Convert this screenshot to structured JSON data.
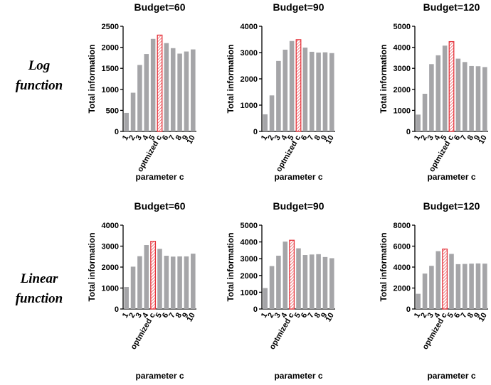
{
  "row_labels": [
    "Log function",
    "Linear function"
  ],
  "chart_data": [
    {
      "type": "bar",
      "title": "Budget=60",
      "ylabel": "Total information",
      "xlabel": "parameter c",
      "categories": [
        "1",
        "2",
        "3",
        "4",
        "5",
        "optmized c",
        "6",
        "7",
        "8",
        "9",
        "10"
      ],
      "values": [
        440,
        920,
        1580,
        1840,
        2200,
        2290,
        2100,
        1980,
        1850,
        1900,
        1950
      ],
      "color": "#a5a5a8",
      "colors": [
        "#a5a5a8",
        "#a5a5a8",
        "#a5a5a8",
        "#a5a5a8",
        "#a5a5a8",
        "#e5333b",
        "#a5a5a8",
        "#a5a5a8",
        "#a5a5a8",
        "#a5a5a8",
        "#a5a5a8"
      ],
      "ylim": [
        0,
        2500
      ],
      "yticks": [
        0,
        500,
        1000,
        1500,
        2000,
        2500
      ]
    },
    {
      "type": "bar",
      "title": "Budget=90",
      "ylabel": "Total information",
      "xlabel": "parameter c",
      "categories": [
        "1",
        "2",
        "3",
        "4",
        "5",
        "optmized c",
        "6",
        "7",
        "8",
        "9",
        "10"
      ],
      "values": [
        650,
        1370,
        2680,
        3110,
        3440,
        3490,
        3190,
        3030,
        3000,
        3010,
        2980
      ],
      "color": "#a5a5a8",
      "colors": [
        "#a5a5a8",
        "#a5a5a8",
        "#a5a5a8",
        "#a5a5a8",
        "#a5a5a8",
        "#e5333b",
        "#a5a5a8",
        "#a5a5a8",
        "#a5a5a8",
        "#a5a5a8",
        "#a5a5a8"
      ],
      "ylim": [
        0,
        4000
      ],
      "yticks": [
        0,
        1000,
        2000,
        3000,
        4000
      ]
    },
    {
      "type": "bar",
      "title": "Budget=120",
      "ylabel": "Total information",
      "xlabel": "parameter c",
      "categories": [
        "1",
        "2",
        "3",
        "4",
        "5",
        "optmized c",
        "6",
        "7",
        "8",
        "9",
        "10"
      ],
      "values": [
        800,
        1790,
        3200,
        3620,
        4080,
        4270,
        3460,
        3300,
        3110,
        3100,
        3060
      ],
      "color": "#a5a5a8",
      "colors": [
        "#a5a5a8",
        "#a5a5a8",
        "#a5a5a8",
        "#a5a5a8",
        "#a5a5a8",
        "#e5333b",
        "#a5a5a8",
        "#a5a5a8",
        "#a5a5a8",
        "#a5a5a8",
        "#a5a5a8"
      ],
      "ylim": [
        0,
        5000
      ],
      "yticks": [
        0,
        1000,
        2000,
        3000,
        4000,
        5000
      ]
    },
    {
      "type": "bar",
      "title": "Budget=60",
      "ylabel": "Total information",
      "xlabel": "parameter c",
      "categories": [
        "1",
        "2",
        "3",
        "4",
        "optmized c",
        "5",
        "6",
        "7",
        "8",
        "9",
        "10"
      ],
      "values": [
        1050,
        2020,
        2520,
        3050,
        3230,
        2870,
        2540,
        2500,
        2510,
        2510,
        2640
      ],
      "color": "#a5a5a8",
      "colors": [
        "#a5a5a8",
        "#a5a5a8",
        "#a5a5a8",
        "#a5a5a8",
        "#e5333b",
        "#a5a5a8",
        "#a5a5a8",
        "#a5a5a8",
        "#a5a5a8",
        "#a5a5a8",
        "#a5a5a8"
      ],
      "ylim": [
        0,
        4000
      ],
      "yticks": [
        0,
        1000,
        2000,
        3000,
        4000
      ]
    },
    {
      "type": "bar",
      "title": "Budget=90",
      "ylabel": "Total information",
      "xlabel": "parameter c",
      "categories": [
        "1",
        "2",
        "3",
        "4",
        "optmized c",
        "5",
        "6",
        "7",
        "8",
        "9",
        "10"
      ],
      "values": [
        1250,
        2560,
        3180,
        4020,
        4100,
        3620,
        3220,
        3250,
        3270,
        3100,
        3030
      ],
      "color": "#a5a5a8",
      "colors": [
        "#a5a5a8",
        "#a5a5a8",
        "#a5a5a8",
        "#a5a5a8",
        "#e5333b",
        "#a5a5a8",
        "#a5a5a8",
        "#a5a5a8",
        "#a5a5a8",
        "#a5a5a8",
        "#a5a5a8"
      ],
      "ylim": [
        0,
        5000
      ],
      "yticks": [
        0,
        1000,
        2000,
        3000,
        4000,
        5000
      ]
    },
    {
      "type": "bar",
      "title": "Budget=120",
      "ylabel": "Total information",
      "xlabel": "parameter c",
      "categories": [
        "1",
        "2",
        "3",
        "4",
        "optmized c",
        "5",
        "6",
        "7",
        "8",
        "9",
        "10"
      ],
      "values": [
        1450,
        3380,
        4120,
        5520,
        5720,
        5260,
        4280,
        4300,
        4330,
        4350,
        4330
      ],
      "color": "#a5a5a8",
      "colors": [
        "#a5a5a8",
        "#a5a5a8",
        "#a5a5a8",
        "#a5a5a8",
        "#e5333b",
        "#a5a5a8",
        "#a5a5a8",
        "#a5a5a8",
        "#a5a5a8",
        "#a5a5a8",
        "#a5a5a8"
      ],
      "ylim": [
        0,
        8000
      ],
      "yticks": [
        0,
        2000,
        4000,
        6000,
        8000
      ]
    }
  ]
}
